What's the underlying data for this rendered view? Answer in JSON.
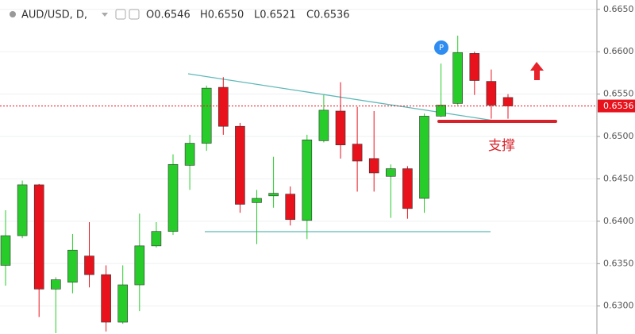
{
  "chart_data": {
    "type": "candlestick",
    "header": {
      "symbol": "AUD/USD, D,",
      "open": "O0.6546",
      "high": "H0.6550",
      "low": "L0.6521",
      "close": "C0.6536"
    },
    "annotation": "支撑",
    "marker": "P",
    "up_color": "#27cc2a",
    "down_color": "#e8121c",
    "ylim": [
      0.6267,
      0.6661
    ],
    "yticks": [
      {
        "value": 0.63,
        "label": "0.6300"
      },
      {
        "value": 0.635,
        "label": "0.6350"
      },
      {
        "value": 0.64,
        "label": "0.6400"
      },
      {
        "value": 0.645,
        "label": "0.6450"
      },
      {
        "value": 0.65,
        "label": "0.6500"
      },
      {
        "value": 0.655,
        "label": "0.6550"
      },
      {
        "value": 0.66,
        "label": "0.6600"
      },
      {
        "value": 0.665,
        "label": "0.6650"
      }
    ],
    "grid": true,
    "last_price": {
      "value": 0.6536,
      "label": "0.6536"
    },
    "series": {
      "open": [
        0.6348,
        0.6383,
        0.6443,
        0.632,
        0.6328,
        0.6359,
        0.6337,
        0.6281,
        0.6325,
        0.6371,
        0.6388,
        0.6466,
        0.6492,
        0.6558,
        0.6512,
        0.6422,
        0.643,
        0.6432,
        0.6401,
        0.6495,
        0.653,
        0.6491,
        0.6474,
        0.6453,
        0.6462,
        0.6427,
        0.6524,
        0.6539,
        0.6598,
        0.6565,
        0.6546
      ],
      "high": [
        0.6413,
        0.6448,
        0.6444,
        0.6334,
        0.6385,
        0.6399,
        0.6348,
        0.6348,
        0.6409,
        0.6399,
        0.6479,
        0.6502,
        0.656,
        0.657,
        0.6516,
        0.6437,
        0.6476,
        0.6441,
        0.6502,
        0.6549,
        0.6564,
        0.6535,
        0.653,
        0.6467,
        0.6465,
        0.6527,
        0.6586,
        0.6619,
        0.66,
        0.6579,
        0.655
      ],
      "low": [
        0.6324,
        0.638,
        0.6287,
        0.6268,
        0.6315,
        0.6322,
        0.627,
        0.6279,
        0.6294,
        0.6369,
        0.6384,
        0.6437,
        0.6483,
        0.6502,
        0.641,
        0.6373,
        0.6416,
        0.6395,
        0.6379,
        0.6493,
        0.6474,
        0.6435,
        0.6435,
        0.6404,
        0.6403,
        0.641,
        0.6523,
        0.6537,
        0.6549,
        0.6521,
        0.6521
      ],
      "close": [
        0.6383,
        0.6443,
        0.632,
        0.6331,
        0.6366,
        0.6337,
        0.6281,
        0.6325,
        0.6371,
        0.6388,
        0.6467,
        0.6492,
        0.6557,
        0.6512,
        0.642,
        0.6427,
        0.6433,
        0.6402,
        0.6496,
        0.6531,
        0.649,
        0.6471,
        0.6457,
        0.6462,
        0.6415,
        0.6524,
        0.6537,
        0.6599,
        0.6566,
        0.6537,
        0.6536
      ]
    }
  }
}
